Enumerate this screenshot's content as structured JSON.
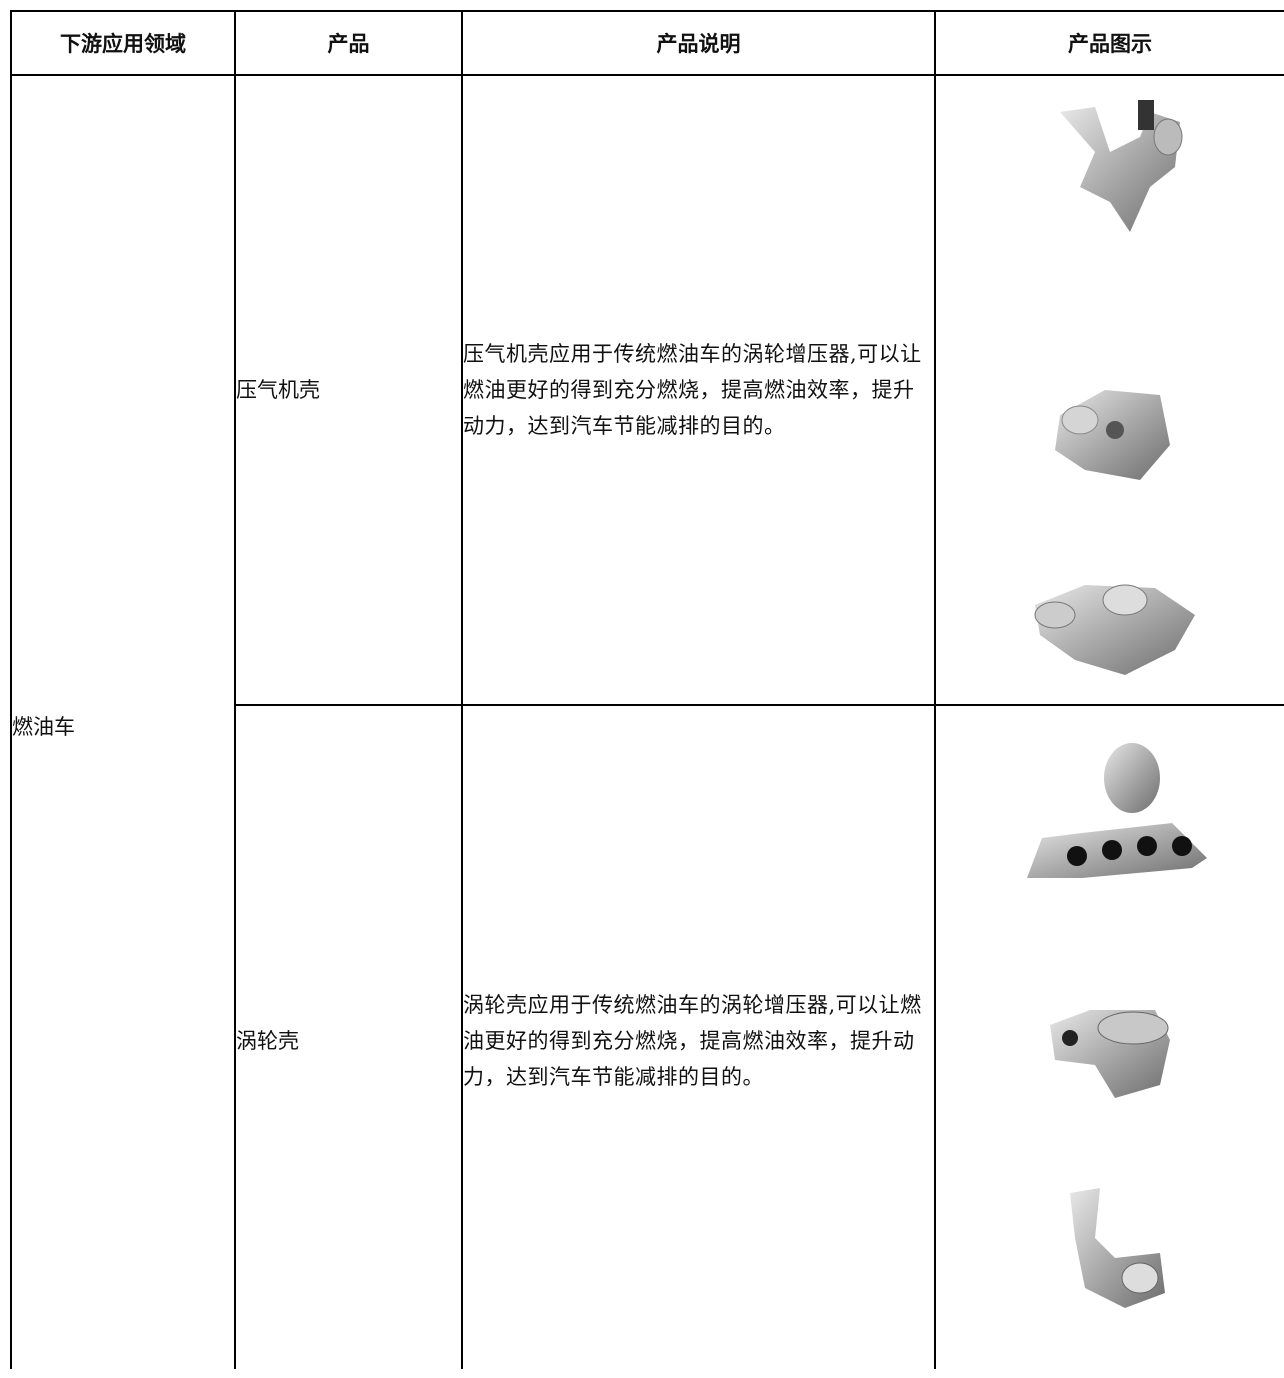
{
  "table": {
    "headers": [
      "下游应用领域",
      "产品",
      "产品说明",
      "产品图示"
    ],
    "rows": [
      {
        "domain": "燃油车",
        "items": [
          {
            "product": "压气机壳",
            "description": "压气机壳应用于传统燃油车的涡轮增压器,可以让燃油更好的得到充分燃烧，提高燃油效率，提升动力，达到汽车节能减排的目的。"
          },
          {
            "product": "涡轮壳",
            "description": "涡轮壳应用于传统燃油车的涡轮增压器,可以让燃油更好的得到充分燃烧，提高燃油效率，提升动力，达到汽车节能减排的目的。"
          }
        ]
      }
    ]
  }
}
